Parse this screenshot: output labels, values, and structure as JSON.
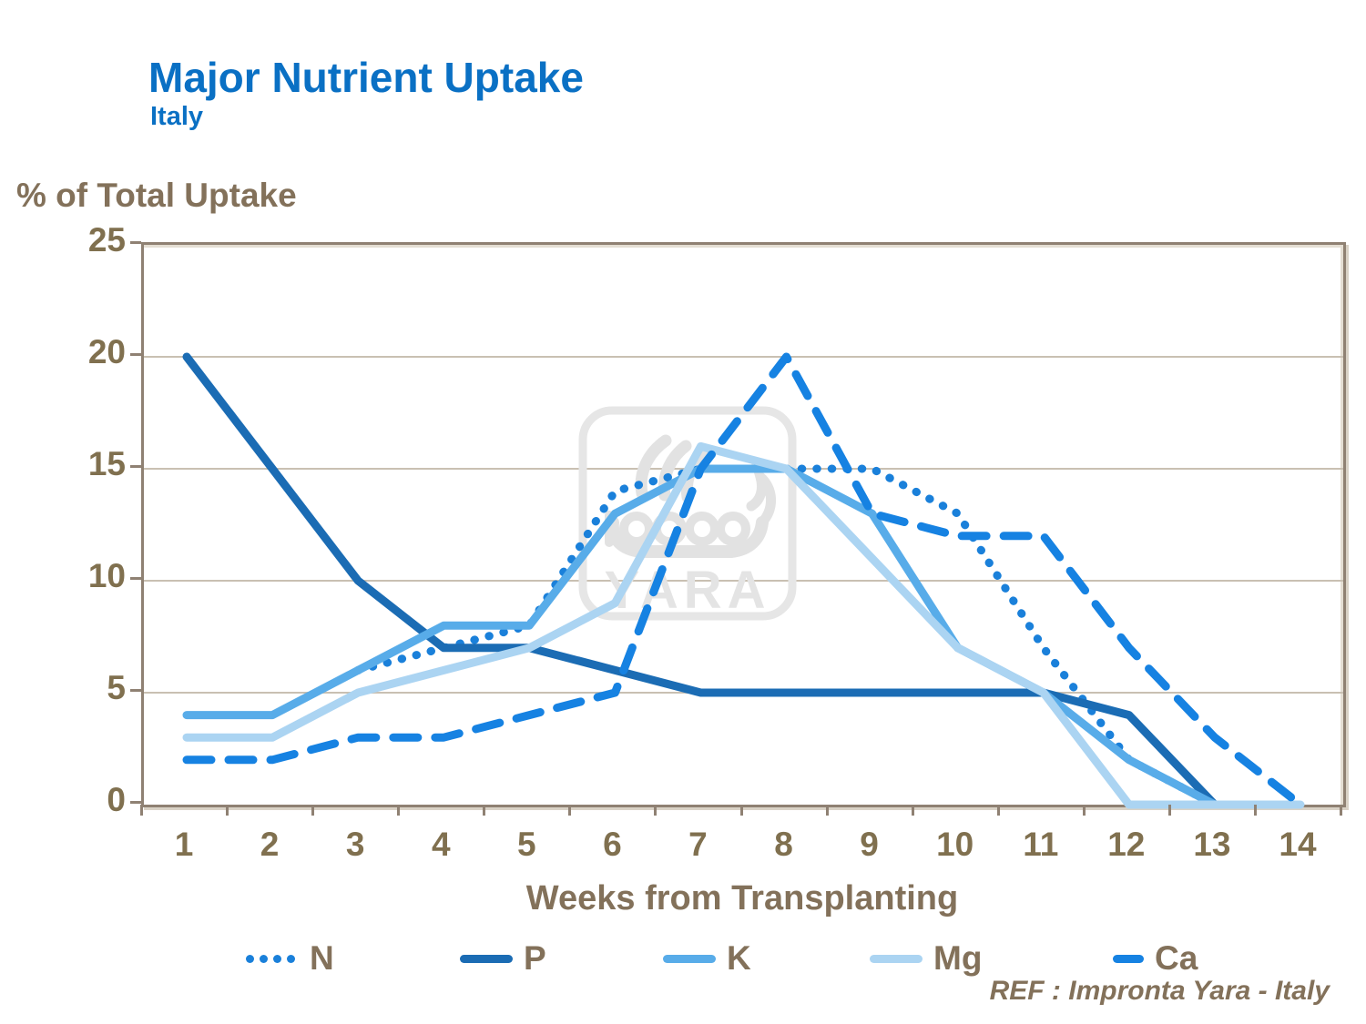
{
  "header": {
    "title": "Major Nutrient Uptake",
    "subtitle": "Italy"
  },
  "axes": {
    "y_axis_label": "% of Total Uptake",
    "x_axis_label": "Weeks from Transplanting",
    "y_ticks": [
      25,
      20,
      15,
      10,
      5,
      0
    ],
    "x_ticks": [
      "1",
      "2",
      "3",
      "4",
      "5",
      "6",
      "7",
      "8",
      "9",
      "10",
      "11",
      "12",
      "13",
      "14"
    ]
  },
  "footer": {
    "ref_text": "REF : Impronta  Yara - Italy"
  },
  "watermark": {
    "text": "YARA",
    "icon": "yara-viking-ship-logo",
    "color": "#e4e4e4"
  },
  "colors": {
    "title_blue": "#0a70c4",
    "label_brown": "#83715a",
    "axis_brown": "#8f8173",
    "gridline": "#c9c0b2"
  },
  "legend": [
    {
      "label": "N",
      "style": "dotted",
      "color": "#1a80da"
    },
    {
      "label": "P",
      "style": "solid",
      "color": "#1b6cb4"
    },
    {
      "label": "K",
      "style": "solid",
      "color": "#58ace9"
    },
    {
      "label": "Mg",
      "style": "solid",
      "color": "#abd4f2"
    },
    {
      "label": "Ca",
      "style": "dashed",
      "color": "#1682e2"
    }
  ],
  "chart_data": {
    "type": "line",
    "title": "Major Nutrient Uptake",
    "xlabel": "Weeks from Transplanting",
    "ylabel": "% of Total Uptake",
    "x": [
      1,
      2,
      3,
      4,
      5,
      6,
      7,
      8,
      9,
      10,
      11,
      12,
      13,
      14
    ],
    "ylim": [
      0,
      25
    ],
    "grid_step": 5,
    "legend_position": "bottom",
    "series": [
      {
        "name": "N",
        "style": "dotted",
        "color": "#1a80da",
        "values": [
          null,
          null,
          6,
          7,
          8,
          14,
          15,
          15,
          15,
          13,
          7,
          2,
          0,
          null
        ]
      },
      {
        "name": "P",
        "style": "solid",
        "color": "#1b6cb4",
        "values": [
          20,
          15,
          10,
          7,
          7,
          6,
          5,
          5,
          5,
          5,
          5,
          4,
          0,
          null
        ]
      },
      {
        "name": "K",
        "style": "solid",
        "color": "#58ace9",
        "values": [
          4,
          4,
          6,
          8,
          8,
          13,
          15,
          15,
          13,
          7,
          5,
          2,
          0,
          null
        ]
      },
      {
        "name": "Mg",
        "style": "solid",
        "color": "#abd4f2",
        "values": [
          3,
          3,
          5,
          6,
          7,
          9,
          16,
          15,
          11,
          7,
          5,
          0,
          0,
          0
        ]
      },
      {
        "name": "Ca",
        "style": "dashed",
        "color": "#1682e2",
        "values": [
          2,
          2,
          3,
          3,
          4,
          5,
          15,
          20,
          13,
          12,
          12,
          7,
          3,
          0
        ]
      }
    ]
  }
}
